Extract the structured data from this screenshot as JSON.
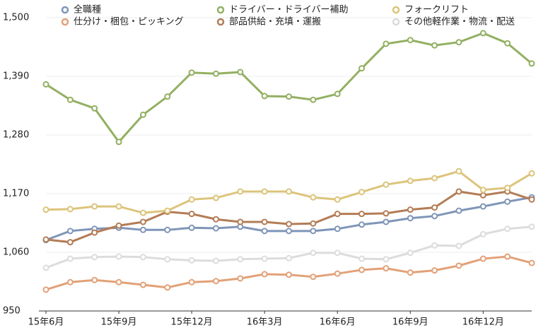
{
  "chart_data": {
    "type": "line",
    "categories": [
      "15年6月",
      null,
      null,
      "15年9月",
      null,
      null,
      "15年12月",
      null,
      null,
      "16年3月",
      null,
      null,
      "16年6月",
      null,
      null,
      "16年9月",
      null,
      null,
      "16年12月",
      null,
      null
    ],
    "series": [
      {
        "name": "全職種",
        "color": "#7f95b8",
        "values": [
          1083,
          1100,
          1104,
          1106,
          1102,
          1102,
          1106,
          1105,
          1108,
          1100,
          1100,
          1100,
          1104,
          1112,
          1117,
          1124,
          1128,
          1138,
          1146,
          1155,
          1163
        ]
      },
      {
        "name": "仕分け・梱包・ピッキング",
        "color": "#e2a177",
        "values": [
          990,
          1004,
          1008,
          1004,
          999,
          994,
          1004,
          1006,
          1011,
          1019,
          1018,
          1014,
          1020,
          1027,
          1030,
          1022,
          1026,
          1035,
          1048,
          1052,
          1040
        ]
      },
      {
        "name": "ドライバー・ドライバー補助",
        "color": "#93b062",
        "values": [
          1375,
          1346,
          1330,
          1267,
          1318,
          1352,
          1397,
          1395,
          1398,
          1353,
          1352,
          1346,
          1357,
          1405,
          1451,
          1458,
          1448,
          1454,
          1471,
          1452,
          1414
        ]
      },
      {
        "name": "部品供給・充填・運搬",
        "color": "#b37c55",
        "values": [
          1084,
          1079,
          1097,
          1110,
          1117,
          1136,
          1132,
          1122,
          1117,
          1117,
          1113,
          1114,
          1132,
          1132,
          1133,
          1140,
          1144,
          1174,
          1167,
          1174,
          1159
        ]
      },
      {
        "name": "フォークリフト",
        "color": "#dcc47b",
        "values": [
          1140,
          1141,
          1146,
          1146,
          1134,
          1138,
          1159,
          1162,
          1174,
          1174,
          1174,
          1163,
          1159,
          1173,
          1187,
          1194,
          1199,
          1212,
          1177,
          1181,
          1208
        ]
      },
      {
        "name": "その他軽作業・物流・配送",
        "color": "#dcdcdc",
        "values": [
          1031,
          1048,
          1051,
          1052,
          1051,
          1047,
          1045,
          1044,
          1047,
          1048,
          1049,
          1059,
          1059,
          1048,
          1047,
          1059,
          1073,
          1072,
          1094,
          1104,
          1108
        ]
      }
    ],
    "ylim": [
      950,
      1500
    ],
    "yticks": [
      950,
      {
        "value": 1060,
        "label": "1,060"
      },
      {
        "value": 1170,
        "label": "1,170"
      },
      {
        "value": 1280,
        "label": "1,280"
      },
      {
        "value": 1390,
        "label": "1,390"
      },
      {
        "value": 1500,
        "label": "1,500"
      }
    ],
    "grid": true
  }
}
